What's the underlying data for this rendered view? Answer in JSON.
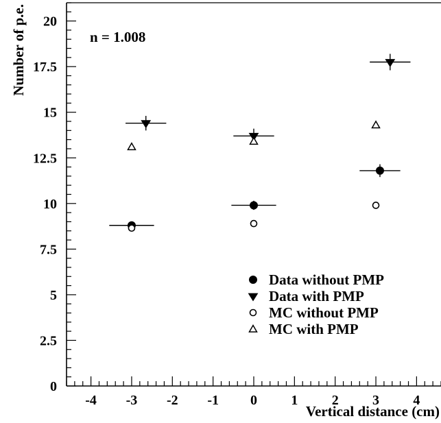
{
  "chart_data": {
    "type": "scatter",
    "annotation": "n = 1.008",
    "xlabel": "Vertical distance (cm)",
    "ylabel": "Number of p.e.",
    "xlim": [
      -4.6,
      4.6
    ],
    "ylim": [
      0,
      21
    ],
    "x_ticks": [
      -4,
      -3,
      -2,
      -1,
      0,
      1,
      2,
      3,
      4
    ],
    "y_ticks": [
      {
        "value": 0,
        "label": "0"
      },
      {
        "value": 2.5,
        "label": "2.5"
      },
      {
        "value": 5,
        "label": "5"
      },
      {
        "value": 7.5,
        "label": "7.5"
      },
      {
        "value": 10,
        "label": "10"
      },
      {
        "value": 12.5,
        "label": "12.5"
      },
      {
        "value": 15,
        "label": "15"
      },
      {
        "value": 17.5,
        "label": "17.5"
      },
      {
        "value": 20,
        "label": "20"
      }
    ],
    "grid": false,
    "legend_position": "bottom-right",
    "series": [
      {
        "name": "Data without PMP",
        "marker": "filled-circle",
        "points": [
          {
            "x": -3.0,
            "y": 8.8,
            "xerr": 0.55,
            "yerr": 0.15
          },
          {
            "x": 0.0,
            "y": 9.9,
            "xerr": 0.55,
            "yerr": 0.25
          },
          {
            "x": 3.1,
            "y": 11.8,
            "xerr": 0.5,
            "yerr": 0.35
          }
        ]
      },
      {
        "name": "Data with PMP",
        "marker": "filled-triangle-down",
        "points": [
          {
            "x": -2.65,
            "y": 14.4,
            "xerr": 0.5,
            "yerr": 0.4
          },
          {
            "x": 0.0,
            "y": 13.7,
            "xerr": 0.5,
            "yerr": 0.4
          },
          {
            "x": 3.35,
            "y": 17.75,
            "xerr": 0.5,
            "yerr": 0.45
          }
        ]
      },
      {
        "name": "MC without PMP",
        "marker": "open-circle",
        "points": [
          {
            "x": -3.0,
            "y": 8.65
          },
          {
            "x": 0.0,
            "y": 8.9
          },
          {
            "x": 3.0,
            "y": 9.9
          }
        ]
      },
      {
        "name": "MC with PMP",
        "marker": "open-triangle-up",
        "points": [
          {
            "x": -3.0,
            "y": 13.1
          },
          {
            "x": 0.0,
            "y": 13.4
          },
          {
            "x": 3.0,
            "y": 14.3
          }
        ]
      }
    ]
  }
}
